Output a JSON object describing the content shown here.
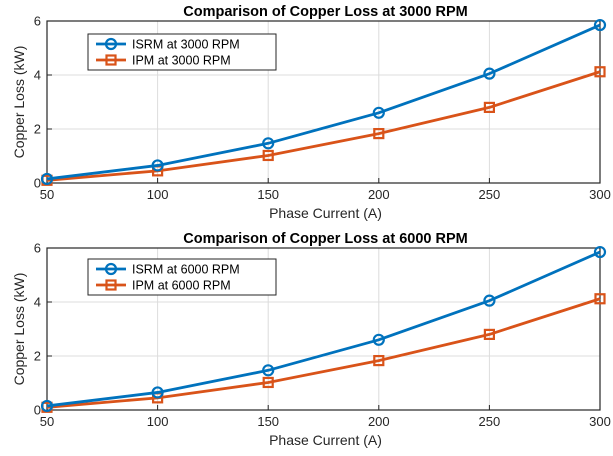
{
  "chart_data": [
    {
      "type": "line",
      "title": "Comparison of Copper Loss at 3000 RPM",
      "xlabel": "Phase Current (A)",
      "ylabel": "Copper Loss (kW)",
      "x": [
        50,
        100,
        150,
        200,
        250,
        300
      ],
      "xlim": [
        50,
        300
      ],
      "ylim": [
        0,
        6
      ],
      "xticks": [
        "50",
        "100",
        "150",
        "200",
        "250",
        "300"
      ],
      "yticks": [
        "0",
        "2",
        "4",
        "6"
      ],
      "grid": true,
      "legend_position": "top-left",
      "series": [
        {
          "name": "ISRM at 3000 RPM",
          "values": [
            0.15,
            0.65,
            1.47,
            2.6,
            4.05,
            5.85
          ],
          "color": "#0072BD",
          "marker": "circle"
        },
        {
          "name": "IPM at 3000 RPM",
          "values": [
            0.1,
            0.45,
            1.02,
            1.83,
            2.8,
            4.12
          ],
          "color": "#D95319",
          "marker": "square"
        }
      ]
    },
    {
      "type": "line",
      "title": "Comparison of Copper Loss at 6000 RPM",
      "xlabel": "Phase Current (A)",
      "ylabel": "Copper Loss (kW)",
      "x": [
        50,
        100,
        150,
        200,
        250,
        300
      ],
      "xlim": [
        50,
        300
      ],
      "ylim": [
        0,
        6
      ],
      "xticks": [
        "50",
        "100",
        "150",
        "200",
        "250",
        "300"
      ],
      "yticks": [
        "0",
        "2",
        "4",
        "6"
      ],
      "grid": true,
      "legend_position": "top-left",
      "series": [
        {
          "name": "ISRM at 6000 RPM",
          "values": [
            0.15,
            0.65,
            1.47,
            2.6,
            4.05,
            5.85
          ],
          "color": "#0072BD",
          "marker": "circle"
        },
        {
          "name": "IPM at 6000 RPM",
          "values": [
            0.1,
            0.45,
            1.02,
            1.83,
            2.8,
            4.12
          ],
          "color": "#D95319",
          "marker": "square"
        }
      ]
    }
  ]
}
